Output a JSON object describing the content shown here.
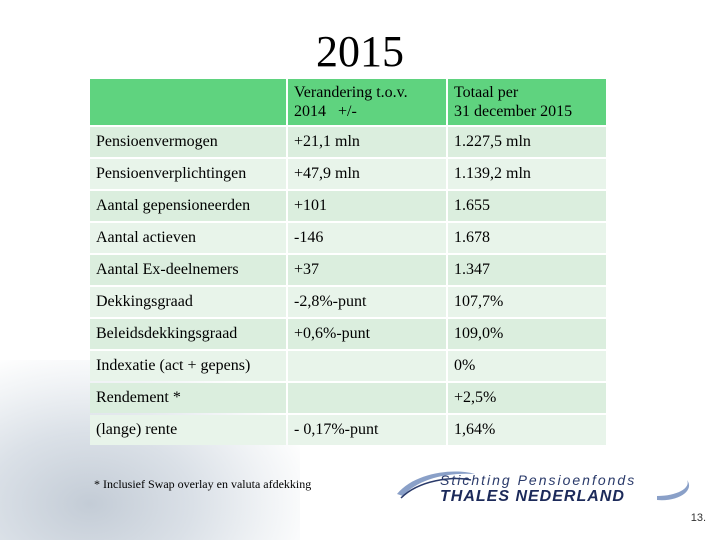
{
  "title": "2015",
  "table": {
    "header": {
      "col1": "",
      "col2_line1": "Verandering t.o.v.",
      "col2_line2": "2014   +/-",
      "col3_line1": "Totaal per",
      "col3_line2": "31 december 2015"
    },
    "rows": [
      {
        "label": "Pensioenvermogen",
        "change": "+21,1 mln",
        "total": "1.227,5 mln"
      },
      {
        "label": "Pensioenverplichtingen",
        "change": "+47,9 mln",
        "total": "1.139,2 mln"
      },
      {
        "label": "Aantal gepensioneerden",
        "change": "+101",
        "total": "1.655"
      },
      {
        "label": "Aantal actieven",
        "change": "-146",
        "total": "1.678"
      },
      {
        "label": "Aantal Ex-deelnemers",
        "change": "+37",
        "total": "1.347"
      },
      {
        "label": "Dekkingsgraad",
        "change": "-2,8%-punt",
        "total": "107,7%"
      },
      {
        "label": "Beleidsdekkingsgraad",
        "change": "+0,6%-punt",
        "total": "109,0%"
      },
      {
        "label": "Indexatie (act + gepens)",
        "change": "",
        "total": "0%"
      },
      {
        "label": "Rendement *",
        "change": "",
        "total": "+2,5%"
      },
      {
        "label": "(lange) rente",
        "change": "- 0,17%-punt",
        "total": "1,64%"
      }
    ]
  },
  "footnote": "* Inclusief Swap overlay en valuta afdekking",
  "logo": {
    "line1": "Stichting Pensioenfonds",
    "line2": "THALES NEDERLAND"
  },
  "page_number": "13."
}
